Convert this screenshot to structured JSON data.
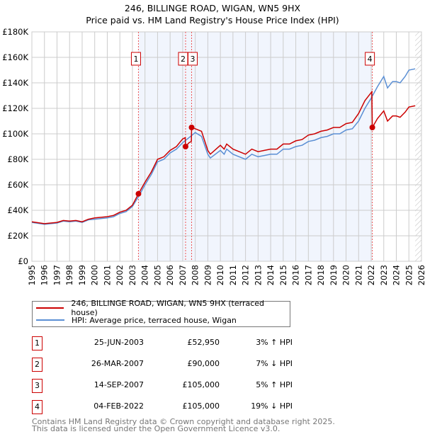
{
  "chart_data": {
    "type": "line",
    "title": "246, BILLINGE ROAD, WIGAN, WN5 9HX",
    "subtitle": "Price paid vs. HM Land Registry's House Price Index (HPI)",
    "xlim": [
      1995,
      2026
    ],
    "ylim": [
      0,
      180000
    ],
    "yticks": [
      {
        "v": 0,
        "label": "£0"
      },
      {
        "v": 20000,
        "label": "£20K"
      },
      {
        "v": 40000,
        "label": "£40K"
      },
      {
        "v": 60000,
        "label": "£60K"
      },
      {
        "v": 80000,
        "label": "£80K"
      },
      {
        "v": 100000,
        "label": "£100K"
      },
      {
        "v": 120000,
        "label": "£120K"
      },
      {
        "v": 140000,
        "label": "£140K"
      },
      {
        "v": 160000,
        "label": "£160K"
      },
      {
        "v": 180000,
        "label": "£180K"
      }
    ],
    "xticks": [
      "1995",
      "1996",
      "1997",
      "1998",
      "1999",
      "2000",
      "2001",
      "2002",
      "2003",
      "2004",
      "2005",
      "2006",
      "2007",
      "2008",
      "2009",
      "2010",
      "2011",
      "2012",
      "2013",
      "2014",
      "2015",
      "2016",
      "2017",
      "2018",
      "2019",
      "2020",
      "2021",
      "2022",
      "2023",
      "2024",
      "2025",
      "2026"
    ],
    "grid": true,
    "shaded_range": [
      2003.48,
      2022.09
    ],
    "hatched_from": 2025.5,
    "series": [
      {
        "name": "246, BILLINGE ROAD, WIGAN, WN5 9HX (terraced house)",
        "color": "#cc0000",
        "points": [
          [
            1995,
            31
          ],
          [
            1996,
            29.5
          ],
          [
            1997,
            30.5
          ],
          [
            1997.5,
            32
          ],
          [
            1998,
            31.5
          ],
          [
            1998.5,
            32
          ],
          [
            1999,
            31
          ],
          [
            1999.5,
            33
          ],
          [
            2000,
            34
          ],
          [
            2001,
            35
          ],
          [
            2001.5,
            36
          ],
          [
            2002,
            38.5
          ],
          [
            2002.5,
            40
          ],
          [
            2003,
            44
          ],
          [
            2003.48,
            52.95
          ],
          [
            2004,
            62
          ],
          [
            2004.5,
            70
          ],
          [
            2005,
            80
          ],
          [
            2005.5,
            82
          ],
          [
            2006,
            87
          ],
          [
            2006.5,
            90
          ],
          [
            2007,
            96
          ],
          [
            2007.2,
            97
          ],
          [
            2007.23,
            90
          ],
          [
            2007.5,
            93
          ],
          [
            2007.69,
            94
          ],
          [
            2007.71,
            105
          ],
          [
            2008,
            104
          ],
          [
            2008.5,
            102
          ],
          [
            2009,
            87
          ],
          [
            2009.2,
            84
          ],
          [
            2010,
            91
          ],
          [
            2010.3,
            88
          ],
          [
            2010.5,
            92
          ],
          [
            2011,
            88
          ],
          [
            2011.5,
            86
          ],
          [
            2012,
            84
          ],
          [
            2012.5,
            88
          ],
          [
            2013,
            86
          ],
          [
            2013.5,
            87
          ],
          [
            2014,
            88
          ],
          [
            2014.5,
            88
          ],
          [
            2015,
            92
          ],
          [
            2015.5,
            92
          ],
          [
            2016,
            94.5
          ],
          [
            2016.5,
            95.5
          ],
          [
            2017,
            99
          ],
          [
            2017.5,
            100
          ],
          [
            2018,
            102
          ],
          [
            2018.5,
            103
          ],
          [
            2019,
            105
          ],
          [
            2019.5,
            105
          ],
          [
            2020,
            108
          ],
          [
            2020.5,
            109
          ],
          [
            2021,
            116
          ],
          [
            2021.5,
            126
          ],
          [
            2022.05,
            133
          ],
          [
            2022.09,
            105
          ],
          [
            2022.5,
            112
          ],
          [
            2023,
            118
          ],
          [
            2023.3,
            110
          ],
          [
            2023.7,
            114
          ],
          [
            2024,
            114
          ],
          [
            2024.3,
            113
          ],
          [
            2024.7,
            117
          ],
          [
            2025,
            121
          ],
          [
            2025.5,
            122
          ]
        ]
      },
      {
        "name": "HPI: Average price, terraced house, Wigan",
        "color": "#5b8fd4",
        "points": [
          [
            1995,
            30.5
          ],
          [
            1996,
            29
          ],
          [
            1997,
            30
          ],
          [
            1997.5,
            31.5
          ],
          [
            1998,
            31
          ],
          [
            1998.5,
            31.5
          ],
          [
            1999,
            30.5
          ],
          [
            1999.5,
            32.5
          ],
          [
            2000,
            33
          ],
          [
            2001,
            34
          ],
          [
            2001.5,
            35
          ],
          [
            2002,
            37.5
          ],
          [
            2002.5,
            39
          ],
          [
            2003,
            43
          ],
          [
            2003.5,
            51
          ],
          [
            2004,
            60
          ],
          [
            2004.5,
            68
          ],
          [
            2005,
            78
          ],
          [
            2005.5,
            80
          ],
          [
            2006,
            85
          ],
          [
            2006.5,
            88
          ],
          [
            2007,
            93
          ],
          [
            2007.5,
            97
          ],
          [
            2008,
            101
          ],
          [
            2008.5,
            98
          ],
          [
            2009,
            84
          ],
          [
            2009.2,
            81
          ],
          [
            2010,
            87
          ],
          [
            2010.3,
            84
          ],
          [
            2010.5,
            88
          ],
          [
            2011,
            84
          ],
          [
            2011.5,
            82
          ],
          [
            2012,
            80
          ],
          [
            2012.5,
            84
          ],
          [
            2013,
            82
          ],
          [
            2013.5,
            83
          ],
          [
            2014,
            84
          ],
          [
            2014.5,
            84
          ],
          [
            2015,
            88
          ],
          [
            2015.5,
            88
          ],
          [
            2016,
            90
          ],
          [
            2016.5,
            91
          ],
          [
            2017,
            94
          ],
          [
            2017.5,
            95
          ],
          [
            2018,
            97
          ],
          [
            2018.5,
            98
          ],
          [
            2019,
            100
          ],
          [
            2019.5,
            100
          ],
          [
            2020,
            103
          ],
          [
            2020.5,
            104
          ],
          [
            2021,
            110
          ],
          [
            2021.5,
            120
          ],
          [
            2022,
            128
          ],
          [
            2022.5,
            137
          ],
          [
            2023,
            145
          ],
          [
            2023.3,
            136
          ],
          [
            2023.7,
            141
          ],
          [
            2024,
            141
          ],
          [
            2024.3,
            140
          ],
          [
            2024.7,
            145
          ],
          [
            2025,
            150
          ],
          [
            2025.5,
            151
          ]
        ]
      }
    ],
    "sales": [
      {
        "label": "1",
        "x": 2003.48,
        "price": 52950,
        "date": "25-JUN-2003",
        "price_text": "£52,950",
        "hpi_text": "3% ↑ HPI"
      },
      {
        "label": "2",
        "x": 2007.23,
        "price": 90000,
        "date": "26-MAR-2007",
        "price_text": "£90,000",
        "hpi_text": "7% ↓ HPI"
      },
      {
        "label": "3",
        "x": 2007.71,
        "price": 105000,
        "date": "14-SEP-2007",
        "price_text": "£105,000",
        "hpi_text": "5% ↑ HPI"
      },
      {
        "label": "4",
        "x": 2022.09,
        "price": 105000,
        "date": "04-FEB-2022",
        "price_text": "£105,000",
        "hpi_text": "19% ↓ HPI"
      }
    ]
  },
  "legend": {
    "red": "246, BILLINGE ROAD, WIGAN, WN5 9HX (terraced house)",
    "blue": "HPI: Average price, terraced house, Wigan"
  },
  "footer": {
    "line1": "Contains HM Land Registry data © Crown copyright and database right 2025.",
    "line2": "This data is licensed under the Open Government Licence v3.0."
  }
}
